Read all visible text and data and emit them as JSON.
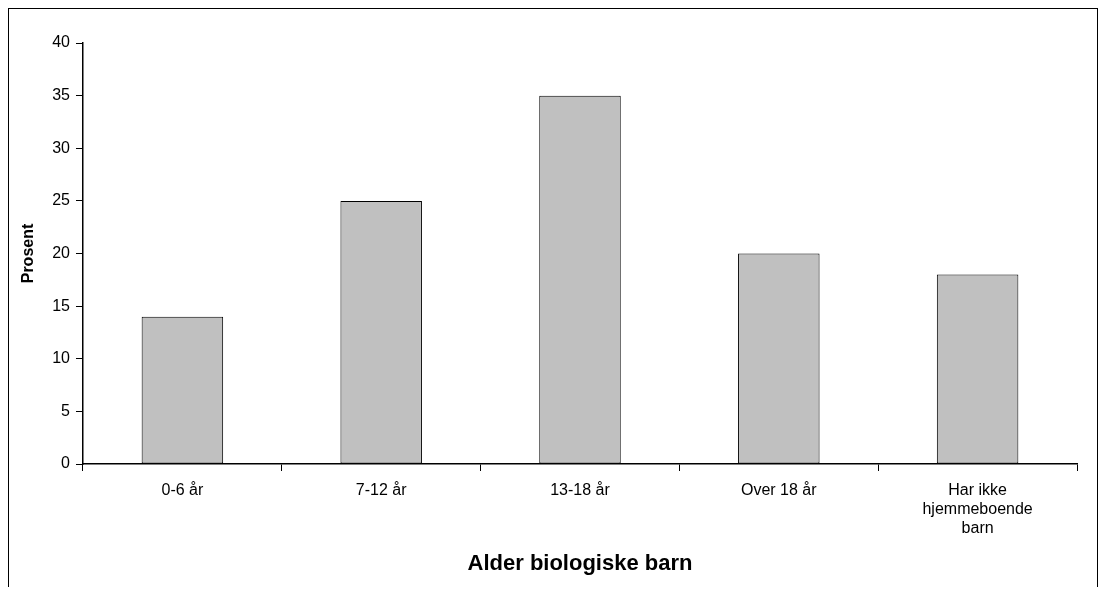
{
  "chart_data": {
    "type": "bar",
    "xlabel": "Alder biologiske barn",
    "ylabel": "Prosent",
    "categories": [
      "0-6 år",
      "7-12 år",
      "13-18 år",
      "Over 18 år",
      "Har ikke hjemmeboende barn"
    ],
    "values": [
      14,
      25,
      35,
      20,
      18
    ],
    "color": "#c0c0c0",
    "ylim": [
      0,
      40
    ],
    "yticks": [
      0,
      5,
      10,
      15,
      20,
      25,
      30,
      35,
      40
    ],
    "grid": false,
    "legend": false
  }
}
